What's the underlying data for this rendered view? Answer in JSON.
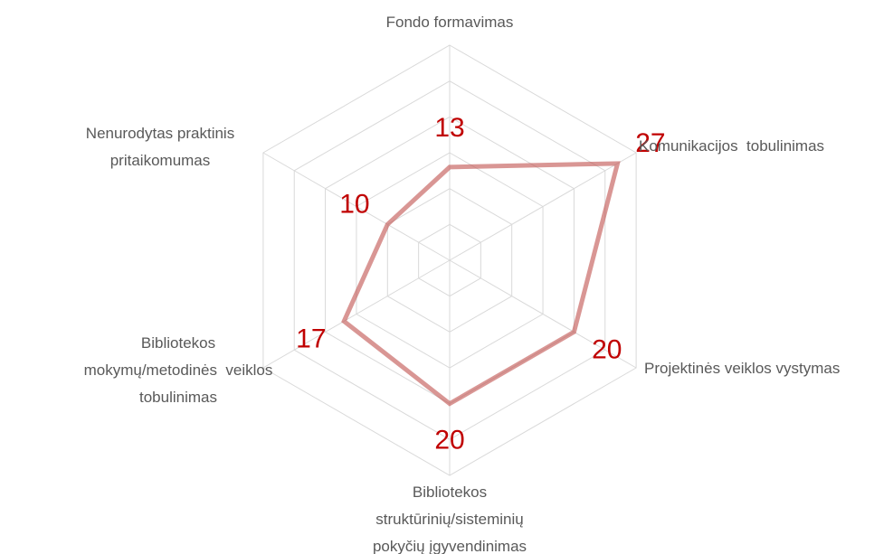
{
  "chart_data": {
    "type": "radar",
    "categories": [
      "Fondo formavimas",
      "Komunikacijos  tobulinimas",
      "Projektinės veiklos vystymas",
      "Bibliotekos\nstruktūrinių/sisteminių\npokyčių įgyvendinimas",
      "Bibliotekos\nmokymų/metodinės  veiklos\ntobulinimas",
      "Nenurodytas praktinis\npritaikomumas"
    ],
    "values": [
      13,
      27,
      20,
      20,
      17,
      10
    ],
    "color": "#c0504d",
    "label_color": "#c00000",
    "ylim": [
      0,
      30
    ],
    "yticks": [
      5,
      10,
      15,
      20,
      25,
      30
    ],
    "grid": true
  }
}
